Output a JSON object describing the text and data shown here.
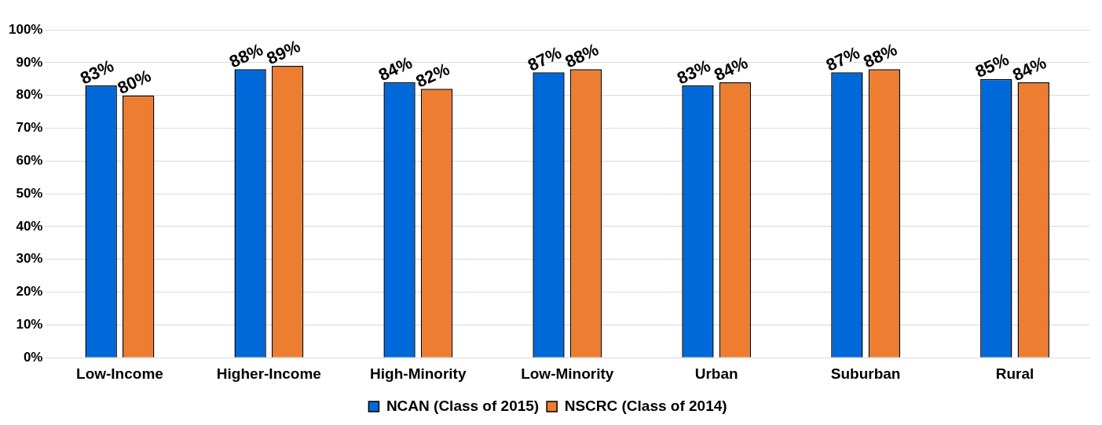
{
  "chart_data": {
    "type": "bar",
    "categories": [
      "Low-Income",
      "Higher-Income",
      "High-Minority",
      "Low-Minority",
      "Urban",
      "Suburban",
      "Rural"
    ],
    "series": [
      {
        "name": "NCAN (Class of 2015)",
        "color": "#0069d9",
        "values": [
          83,
          88,
          84,
          87,
          83,
          87,
          85
        ],
        "value_labels": [
          "83%",
          "88%",
          "84%",
          "87%",
          "83%",
          "87%",
          "85%"
        ]
      },
      {
        "name": "NSCRC (Class of 2014)",
        "color": "#ed7d31",
        "values": [
          80,
          89,
          82,
          88,
          84,
          88,
          84
        ],
        "value_labels": [
          "80%",
          "89%",
          "82%",
          "88%",
          "84%",
          "88%",
          "84%"
        ]
      }
    ],
    "ylim": [
      0,
      100
    ],
    "yticks": [
      {
        "value": 0,
        "label": "0%"
      },
      {
        "value": 10,
        "label": "10%"
      },
      {
        "value": 20,
        "label": "20%"
      },
      {
        "value": 30,
        "label": "30%"
      },
      {
        "value": 40,
        "label": "40%"
      },
      {
        "value": 50,
        "label": "50%"
      },
      {
        "value": 60,
        "label": "60%"
      },
      {
        "value": 70,
        "label": "70%"
      },
      {
        "value": 80,
        "label": "80%"
      },
      {
        "value": 90,
        "label": "90%"
      },
      {
        "value": 100,
        "label": "100%"
      }
    ],
    "grid": "y",
    "legend": "bottom"
  }
}
